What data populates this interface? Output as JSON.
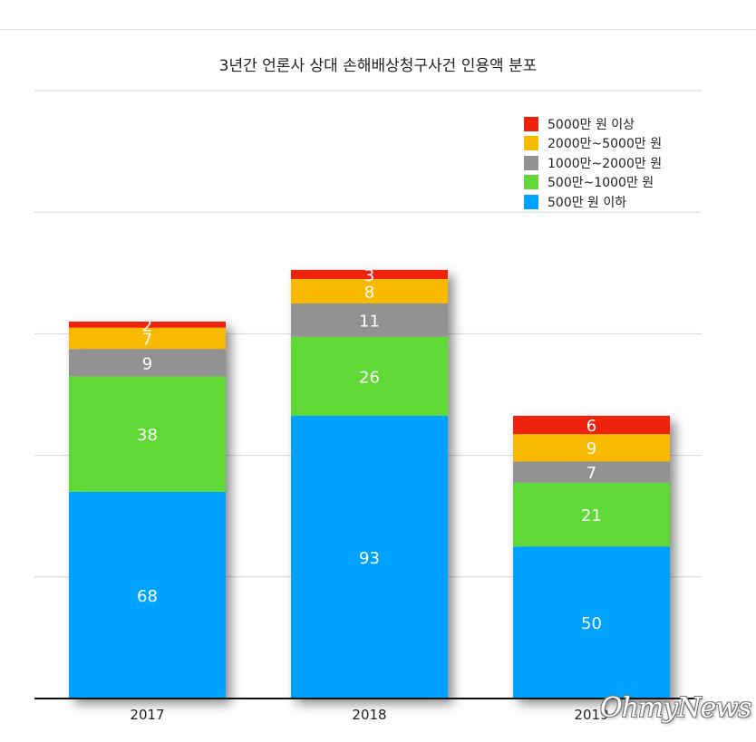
{
  "chart_data": {
    "type": "bar",
    "stacked": true,
    "title": "3년간 언론사 상대 손해배상청구사건 인용액 분포",
    "categories": [
      "2017",
      "2018",
      "2019"
    ],
    "series": [
      {
        "name": "500만 원 이하",
        "color": "#00a2ff",
        "values": [
          68,
          93,
          50
        ]
      },
      {
        "name": "500만~1000만 원",
        "color": "#61d836",
        "values": [
          38,
          26,
          21
        ]
      },
      {
        "name": "1000만~2000만 원",
        "color": "#929292",
        "values": [
          9,
          11,
          7
        ]
      },
      {
        "name": "2000만~5000만 원",
        "color": "#f8ba00",
        "values": [
          7,
          8,
          9
        ]
      },
      {
        "name": "5000만 원 이상",
        "color": "#ee220c",
        "values": [
          2,
          3,
          6
        ]
      }
    ],
    "ylim": [
      0,
      200
    ],
    "gridlines": [
      40,
      80,
      120,
      160
    ],
    "grid": true,
    "legend_position": "top-right",
    "legend_order": [
      "5000만 원 이상",
      "2000만~5000만 원",
      "1000만~2000만 원",
      "500만~1000만 원",
      "500만 원 이하"
    ]
  },
  "watermark": "OhmyNews"
}
